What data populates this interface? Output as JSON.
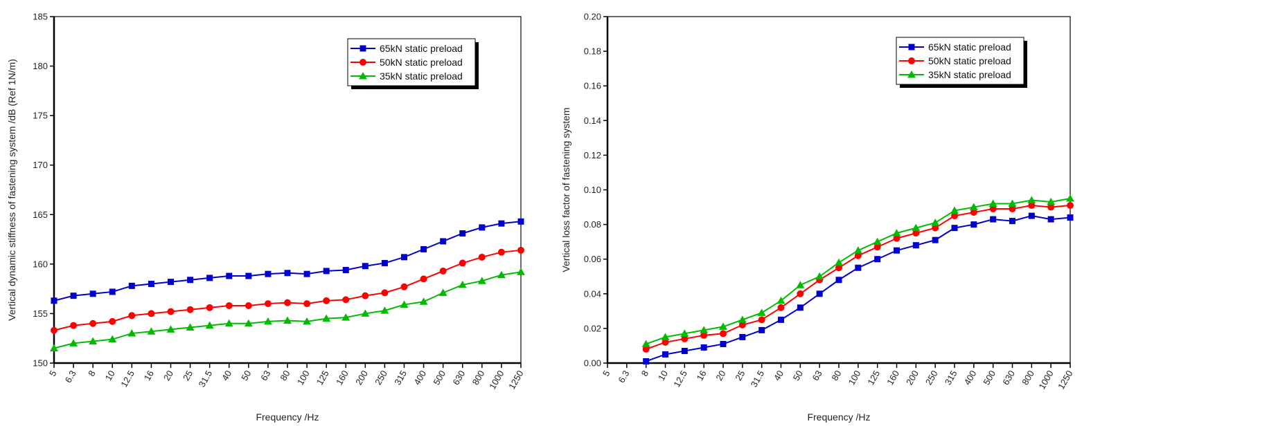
{
  "chart_data": [
    {
      "type": "line",
      "title": "",
      "xlabel": "Frequency /Hz",
      "ylabel": "Vertical dynamic stiffness of fastening system /dB (Ref 1N/m)",
      "ylim": [
        150,
        185
      ],
      "yticks": [
        "150",
        "155",
        "160",
        "165",
        "170",
        "175",
        "180",
        "185"
      ],
      "ytick_values": [
        150,
        155,
        160,
        165,
        170,
        175,
        180,
        185
      ],
      "categories": [
        "5",
        "6.3",
        "8",
        "10",
        "12.5",
        "16",
        "20",
        "25",
        "31.5",
        "40",
        "50",
        "63",
        "80",
        "100",
        "125",
        "160",
        "200",
        "250",
        "315",
        "400",
        "500",
        "630",
        "800",
        "1000",
        "1250"
      ],
      "grid": false,
      "legend_position": "top-right",
      "series": [
        {
          "name": "65kN static preload",
          "color": "#0000cc",
          "marker": "square",
          "values": [
            156.3,
            156.8,
            157.0,
            157.2,
            157.8,
            158.0,
            158.2,
            158.4,
            158.6,
            158.8,
            158.8,
            159.0,
            159.1,
            159.0,
            159.3,
            159.4,
            159.8,
            160.1,
            160.7,
            161.5,
            162.3,
            163.1,
            163.7,
            164.1,
            164.3
          ]
        },
        {
          "name": "50kN static preload",
          "color": "#ff0000",
          "marker": "circle",
          "values": [
            153.3,
            153.8,
            154.0,
            154.2,
            154.8,
            155.0,
            155.2,
            155.4,
            155.6,
            155.8,
            155.8,
            156.0,
            156.1,
            156.0,
            156.3,
            156.4,
            156.8,
            157.1,
            157.7,
            158.5,
            159.3,
            160.1,
            160.7,
            161.2,
            161.4
          ]
        },
        {
          "name": "35kN static preload",
          "color": "#00bb00",
          "marker": "triangle",
          "values": [
            151.5,
            152.0,
            152.2,
            152.4,
            153.0,
            153.2,
            153.4,
            153.6,
            153.8,
            154.0,
            154.0,
            154.2,
            154.3,
            154.2,
            154.5,
            154.6,
            155.0,
            155.3,
            155.9,
            156.2,
            157.1,
            157.9,
            158.3,
            158.9,
            159.2
          ]
        }
      ]
    },
    {
      "type": "line",
      "title": "",
      "xlabel": "Frequency /Hz",
      "ylabel": "Vertical loss factor of fastening system",
      "ylim": [
        0.0,
        0.2
      ],
      "yticks": [
        "0.00",
        "0.02",
        "0.04",
        "0.06",
        "0.08",
        "0.10",
        "0.12",
        "0.14",
        "0.16",
        "0.18",
        "0.20"
      ],
      "ytick_values": [
        0.0,
        0.02,
        0.04,
        0.06,
        0.08,
        0.1,
        0.12,
        0.14,
        0.16,
        0.18,
        0.2
      ],
      "categories": [
        "5",
        "6.3",
        "8",
        "10",
        "12.5",
        "16",
        "20",
        "25",
        "31.5",
        "40",
        "50",
        "63",
        "80",
        "100",
        "125",
        "160",
        "200",
        "250",
        "315",
        "400",
        "500",
        "630",
        "800",
        "1000",
        "1250"
      ],
      "grid": false,
      "legend_position": "top-right",
      "series": [
        {
          "name": "65kN static preload",
          "color": "#0000cc",
          "marker": "square",
          "values": [
            null,
            null,
            0.001,
            0.005,
            0.007,
            0.009,
            0.011,
            0.015,
            0.019,
            0.025,
            0.032,
            0.04,
            0.048,
            0.055,
            0.06,
            0.065,
            0.068,
            0.071,
            0.078,
            0.08,
            0.083,
            0.082,
            0.085,
            0.083,
            0.084
          ]
        },
        {
          "name": "50kN static preload",
          "color": "#ff0000",
          "marker": "circle",
          "values": [
            null,
            null,
            0.008,
            0.012,
            0.014,
            0.016,
            0.017,
            0.022,
            0.025,
            0.032,
            0.04,
            0.048,
            0.055,
            0.062,
            0.067,
            0.072,
            0.075,
            0.078,
            0.085,
            0.087,
            0.089,
            0.089,
            0.091,
            0.09,
            0.091
          ]
        },
        {
          "name": "35kN static preload",
          "color": "#00bb00",
          "marker": "triangle",
          "values": [
            null,
            null,
            0.011,
            0.015,
            0.017,
            0.019,
            0.021,
            0.025,
            0.029,
            0.036,
            0.045,
            0.05,
            0.058,
            0.065,
            0.07,
            0.075,
            0.078,
            0.081,
            0.088,
            0.09,
            0.092,
            0.092,
            0.094,
            0.093,
            0.095
          ]
        }
      ]
    }
  ]
}
